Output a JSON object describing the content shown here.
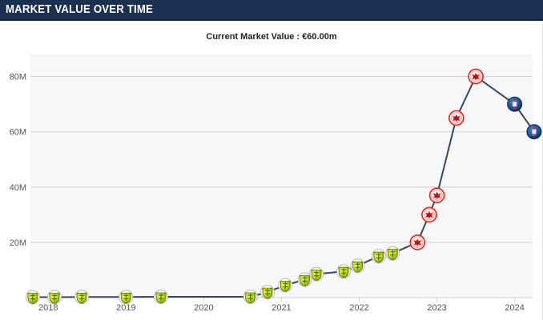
{
  "header": {
    "title": "MARKET VALUE OVER TIME"
  },
  "chart_data": {
    "type": "line",
    "title": "MARKET VALUE OVER TIME",
    "subtitle": "Current Market Value : €60.00m",
    "xlabel": "",
    "ylabel": "",
    "x_ticks": [
      "2018",
      "2019",
      "2020",
      "2021",
      "2022",
      "2023",
      "2024"
    ],
    "y_ticks": [
      "20M",
      "40M",
      "60M",
      "80M"
    ],
    "ylim": [
      0,
      88
    ],
    "xlim": [
      2017.79,
      2024.25
    ],
    "grid": true,
    "legend": "none",
    "colors": {
      "line": "#34495e",
      "nantes": "#c6d300",
      "frankfurt": "#e2231a",
      "psg": "#1c4d8c"
    },
    "series": [
      {
        "points": [
          {
            "x": 2017.8,
            "y": 0.15,
            "club": "nantes"
          },
          {
            "x": 2018.08,
            "y": 0.15,
            "club": "nantes"
          },
          {
            "x": 2018.43,
            "y": 0.2,
            "club": "nantes"
          },
          {
            "x": 2019.0,
            "y": 0.2,
            "club": "nantes"
          },
          {
            "x": 2019.45,
            "y": 0.3,
            "club": "nantes"
          },
          {
            "x": 2020.6,
            "y": 0.3,
            "club": "nantes"
          },
          {
            "x": 2020.82,
            "y": 2.0,
            "club": "nantes"
          },
          {
            "x": 2021.05,
            "y": 4.5,
            "club": "nantes"
          },
          {
            "x": 2021.3,
            "y": 6.5,
            "club": "nantes"
          },
          {
            "x": 2021.45,
            "y": 8.5,
            "club": "nantes"
          },
          {
            "x": 2021.8,
            "y": 9.5,
            "club": "nantes"
          },
          {
            "x": 2021.98,
            "y": 11.5,
            "club": "nantes"
          },
          {
            "x": 2022.25,
            "y": 15.0,
            "club": "nantes"
          },
          {
            "x": 2022.43,
            "y": 16.0,
            "club": "nantes"
          },
          {
            "x": 2022.75,
            "y": 20.0,
            "club": "frankfurt"
          },
          {
            "x": 2022.9,
            "y": 30.0,
            "club": "frankfurt"
          },
          {
            "x": 2023.0,
            "y": 37.0,
            "club": "frankfurt"
          },
          {
            "x": 2023.25,
            "y": 65.0,
            "club": "frankfurt"
          },
          {
            "x": 2023.5,
            "y": 80.0,
            "club": "frankfurt"
          },
          {
            "x": 2024.0,
            "y": 70.0,
            "club": "psg"
          },
          {
            "x": 2024.25,
            "y": 60.0,
            "club": "psg"
          }
        ]
      }
    ]
  }
}
